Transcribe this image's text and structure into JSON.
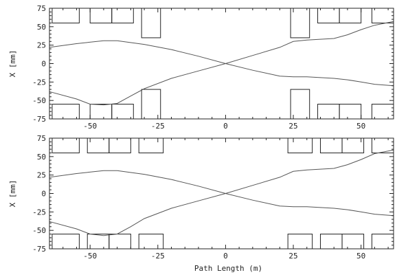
{
  "chart_data": [
    {
      "type": "line",
      "xlabel": "",
      "ylabel": "X [mm]",
      "xlim": [
        -65,
        62
      ],
      "ylim": [
        -75,
        75
      ],
      "xticks": [
        -50,
        -25,
        0,
        25,
        50
      ],
      "yticks": [
        -75,
        -50,
        -25,
        0,
        25,
        50,
        75
      ],
      "series": [
        {
          "x": [
            -65,
            -55,
            -45,
            -40,
            -30,
            -20,
            -10,
            0,
            10,
            20,
            25,
            30,
            35,
            40,
            45,
            50,
            55,
            62
          ],
          "y": [
            22,
            27,
            31,
            31,
            26,
            19,
            10,
            0,
            -9,
            -17,
            -18,
            -18,
            -19,
            -20,
            -22,
            -25,
            -28,
            -30
          ]
        },
        {
          "x": [
            -65,
            -55,
            -50,
            -45,
            -40,
            -35,
            -30,
            -20,
            -10,
            0,
            10,
            20,
            25,
            30,
            35,
            40,
            45,
            50,
            55,
            62
          ],
          "y": [
            -38,
            -48,
            -55,
            -56,
            -54,
            -44,
            -34,
            -20,
            -10,
            0,
            11,
            22,
            30,
            32,
            33,
            34,
            39,
            46,
            52,
            57
          ]
        }
      ],
      "apertures": [
        {
          "x0": -64,
          "x1": -54,
          "y0": -75,
          "y1": -55
        },
        {
          "x0": -64,
          "x1": -54,
          "y0": 55,
          "y1": 75
        },
        {
          "x0": -50,
          "x1": -42,
          "y0": -75,
          "y1": -55
        },
        {
          "x0": -50,
          "x1": -42,
          "y0": 55,
          "y1": 75
        },
        {
          "x0": -42,
          "x1": -34,
          "y0": -75,
          "y1": -55
        },
        {
          "x0": -42,
          "x1": -34,
          "y0": 55,
          "y1": 75
        },
        {
          "x0": -31,
          "x1": -24,
          "y0": -75,
          "y1": -35
        },
        {
          "x0": -31,
          "x1": -24,
          "y0": 35,
          "y1": 75
        },
        {
          "x0": 24,
          "x1": 31,
          "y0": -75,
          "y1": -35
        },
        {
          "x0": 24,
          "x1": 31,
          "y0": 35,
          "y1": 75
        },
        {
          "x0": 34,
          "x1": 42,
          "y0": -75,
          "y1": -55
        },
        {
          "x0": 34,
          "x1": 42,
          "y0": 55,
          "y1": 75
        },
        {
          "x0": 42,
          "x1": 50,
          "y0": -75,
          "y1": -55
        },
        {
          "x0": 42,
          "x1": 50,
          "y0": 55,
          "y1": 75
        },
        {
          "x0": 54,
          "x1": 62,
          "y0": -75,
          "y1": -55
        },
        {
          "x0": 54,
          "x1": 62,
          "y0": 55,
          "y1": 75
        }
      ]
    },
    {
      "type": "line",
      "xlabel": "Path Length (m)",
      "ylabel": "X [mm]",
      "xlim": [
        -65,
        62
      ],
      "ylim": [
        -75,
        75
      ],
      "xticks": [
        -50,
        -25,
        0,
        25,
        50
      ],
      "yticks": [
        -75,
        -50,
        -25,
        0,
        25,
        50,
        75
      ],
      "series": [
        {
          "x": [
            -65,
            -55,
            -45,
            -40,
            -30,
            -20,
            -10,
            0,
            10,
            20,
            25,
            30,
            35,
            40,
            45,
            50,
            55,
            62
          ],
          "y": [
            22,
            27,
            31,
            31,
            26,
            19,
            10,
            0,
            -9,
            -17,
            -18,
            -18,
            -19,
            -20,
            -22,
            -25,
            -28,
            -30
          ]
        },
        {
          "x": [
            -65,
            -55,
            -50,
            -45,
            -40,
            -35,
            -30,
            -20,
            -10,
            0,
            10,
            20,
            25,
            30,
            35,
            40,
            45,
            50,
            55,
            62
          ],
          "y": [
            -38,
            -48,
            -55,
            -57,
            -55,
            -45,
            -34,
            -20,
            -10,
            0,
            11,
            22,
            30,
            32,
            33,
            34,
            39,
            46,
            54,
            59
          ]
        }
      ],
      "apertures": [
        {
          "x0": -64,
          "x1": -54,
          "y0": -75,
          "y1": -55
        },
        {
          "x0": -64,
          "x1": -54,
          "y0": 55,
          "y1": 75
        },
        {
          "x0": -51,
          "x1": -43,
          "y0": -75,
          "y1": -55
        },
        {
          "x0": -51,
          "x1": -43,
          "y0": 55,
          "y1": 75
        },
        {
          "x0": -43,
          "x1": -35,
          "y0": -75,
          "y1": -55
        },
        {
          "x0": -43,
          "x1": -35,
          "y0": 55,
          "y1": 75
        },
        {
          "x0": -32,
          "x1": -23,
          "y0": -75,
          "y1": -55
        },
        {
          "x0": -32,
          "x1": -23,
          "y0": 55,
          "y1": 75
        },
        {
          "x0": 23,
          "x1": 32,
          "y0": -75,
          "y1": -55
        },
        {
          "x0": 23,
          "x1": 32,
          "y0": 55,
          "y1": 75
        },
        {
          "x0": 35,
          "x1": 43,
          "y0": -75,
          "y1": -55
        },
        {
          "x0": 35,
          "x1": 43,
          "y0": 55,
          "y1": 75
        },
        {
          "x0": 43,
          "x1": 51,
          "y0": -75,
          "y1": -55
        },
        {
          "x0": 43,
          "x1": 51,
          "y0": 55,
          "y1": 75
        },
        {
          "x0": 54,
          "x1": 62,
          "y0": -75,
          "y1": -55
        },
        {
          "x0": 54,
          "x1": 62,
          "y0": 55,
          "y1": 75
        }
      ]
    }
  ]
}
